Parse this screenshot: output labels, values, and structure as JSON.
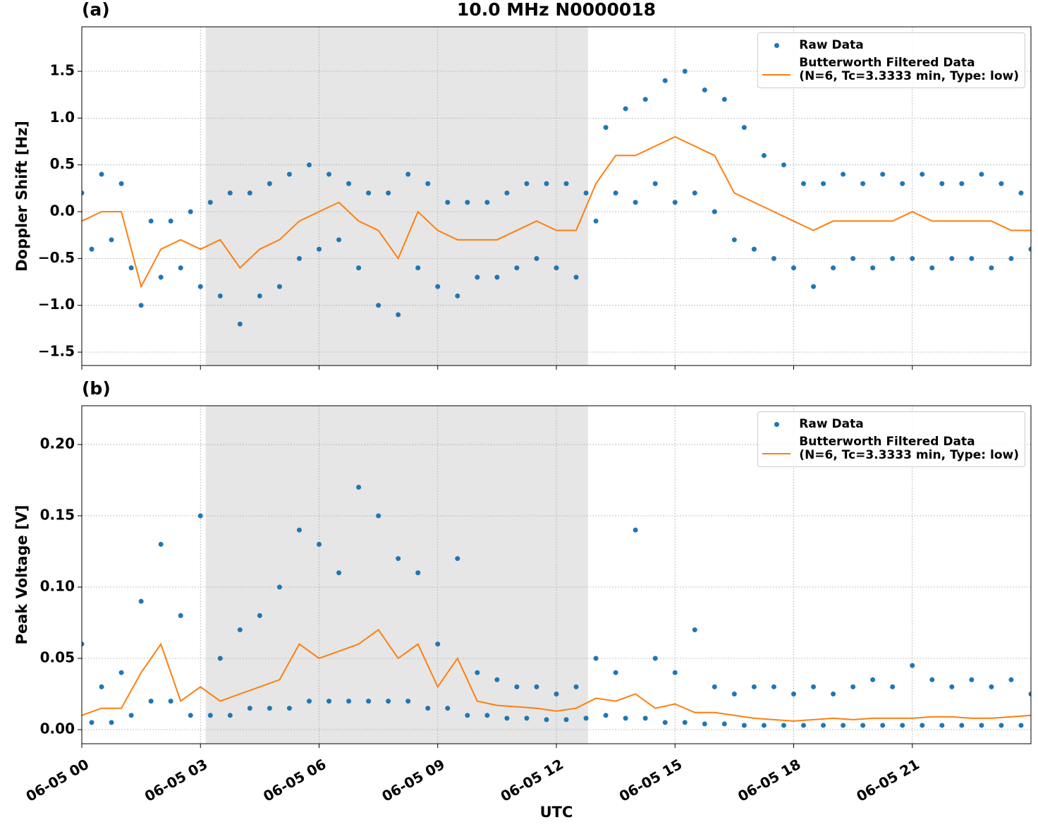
{
  "chart_data": [
    {
      "type": "scatter",
      "title": "10.0 MHz N0000018",
      "label": "(a)",
      "ylabel": "Doppler Shift [Hz]",
      "xlim": [
        0,
        24
      ],
      "ylim": [
        -1.643,
        1.975
      ],
      "yticks": [
        {
          "value": -1.5,
          "label": "−1.5"
        },
        {
          "value": -1.0,
          "label": "−1.0"
        },
        {
          "value": -0.5,
          "label": "−0.5"
        },
        {
          "value": 0,
          "label": "0.0"
        },
        0.5,
        {
          "value": 1.0,
          "label": "1.0"
        },
        1.5
      ],
      "grid": true,
      "shade": [
        3.13,
        12.8
      ],
      "legend": "upper right",
      "series": [
        {
          "name": "Raw Data",
          "color": "#1f77b4",
          "mode": "markers",
          "x": [
            0,
            0.25,
            0.5,
            0.75,
            1,
            1.25,
            1.5,
            1.75,
            2,
            2.25,
            2.5,
            2.75,
            3,
            3.25,
            3.5,
            3.75,
            4,
            4.25,
            4.5,
            4.75,
            5,
            5.25,
            5.5,
            5.75,
            6,
            6.25,
            6.5,
            6.75,
            7,
            7.25,
            7.5,
            7.75,
            8,
            8.25,
            8.5,
            8.75,
            9,
            9.25,
            9.5,
            9.75,
            10,
            10.25,
            10.5,
            10.75,
            11,
            11.25,
            11.5,
            11.75,
            12,
            12.25,
            12.5,
            12.75,
            13,
            13.25,
            13.5,
            13.75,
            14,
            14.25,
            14.5,
            14.75,
            15,
            15.25,
            15.5,
            15.75,
            16,
            16.25,
            16.5,
            16.75,
            17,
            17.25,
            17.5,
            17.75,
            18,
            18.25,
            18.5,
            18.75,
            19,
            19.25,
            19.5,
            19.75,
            20,
            20.25,
            20.5,
            20.75,
            21,
            21.25,
            21.5,
            21.75,
            22,
            22.25,
            22.5,
            22.75,
            23,
            23.25,
            23.5,
            23.75,
            24
          ],
          "values": [
            0.2,
            -0.4,
            0.4,
            -0.3,
            0.3,
            -0.6,
            -1.0,
            -0.1,
            -0.7,
            -0.1,
            -0.6,
            0.0,
            -0.8,
            0.1,
            -0.9,
            0.2,
            -1.2,
            0.2,
            -0.9,
            0.3,
            -0.8,
            0.4,
            -0.5,
            0.5,
            -0.4,
            0.4,
            -0.3,
            0.3,
            -0.6,
            0.2,
            -1.0,
            0.2,
            -1.1,
            0.4,
            -0.6,
            0.3,
            -0.8,
            0.1,
            -0.9,
            0.1,
            -0.7,
            0.1,
            -0.7,
            0.2,
            -0.6,
            0.3,
            -0.5,
            0.3,
            -0.6,
            0.3,
            -0.7,
            0.2,
            -0.1,
            0.9,
            0.2,
            1.1,
            0.1,
            1.2,
            0.3,
            1.4,
            0.1,
            1.5,
            0.2,
            1.3,
            0.0,
            1.2,
            -0.3,
            0.9,
            -0.4,
            0.6,
            -0.5,
            0.5,
            -0.6,
            0.3,
            -0.8,
            0.3,
            -0.6,
            0.4,
            -0.5,
            0.3,
            -0.6,
            0.4,
            -0.5,
            0.3,
            -0.5,
            0.4,
            -0.6,
            0.3,
            -0.5,
            0.3,
            -0.5,
            0.4,
            -0.6,
            0.3,
            -0.5,
            0.2,
            -0.4
          ]
        },
        {
          "name": "Butterworth Filtered Data\n(N=6, Tc=3.3333 min, Type: low)",
          "color": "#ff7f0e",
          "mode": "line",
          "x": [
            0,
            0.5,
            1,
            1.5,
            2,
            2.5,
            3,
            3.5,
            4,
            4.5,
            5,
            5.5,
            6,
            6.5,
            7,
            7.5,
            8,
            8.5,
            9,
            9.5,
            10,
            10.5,
            11,
            11.5,
            12,
            12.5,
            13,
            13.5,
            14,
            14.5,
            15,
            15.5,
            16,
            16.5,
            17,
            17.5,
            18,
            18.5,
            19,
            19.5,
            20,
            20.5,
            21,
            21.5,
            22,
            22.5,
            23,
            23.5,
            24
          ],
          "values": [
            -0.1,
            0.0,
            0.0,
            -0.8,
            -0.4,
            -0.3,
            -0.4,
            -0.3,
            -0.6,
            -0.4,
            -0.3,
            -0.1,
            0.0,
            0.1,
            -0.1,
            -0.2,
            -0.5,
            0.0,
            -0.2,
            -0.3,
            -0.3,
            -0.3,
            -0.2,
            -0.1,
            -0.2,
            -0.2,
            0.3,
            0.6,
            0.6,
            0.7,
            0.8,
            0.7,
            0.6,
            0.2,
            0.1,
            0.0,
            -0.1,
            -0.2,
            -0.1,
            -0.1,
            -0.1,
            -0.1,
            0.0,
            -0.1,
            -0.1,
            -0.1,
            -0.1,
            -0.2,
            -0.2
          ]
        }
      ]
    },
    {
      "type": "scatter",
      "label": "(b)",
      "ylabel": "Peak Voltage [V]",
      "xlabel": "UTC",
      "xlim": [
        0,
        24
      ],
      "ylim": [
        -0.0099,
        0.2272
      ],
      "xticks": [
        {
          "value": 0,
          "label": "06-05 00"
        },
        {
          "value": 3,
          "label": "06-05 03"
        },
        {
          "value": 6,
          "label": "06-05 06"
        },
        {
          "value": 9,
          "label": "06-05 09"
        },
        {
          "value": 12,
          "label": "06-05 12"
        },
        {
          "value": 15,
          "label": "06-05 15"
        },
        {
          "value": 18,
          "label": "06-05 18"
        },
        {
          "value": 21,
          "label": "06-05 21"
        }
      ],
      "yticks": [
        {
          "value": 0,
          "label": "0.00"
        },
        0.05,
        {
          "value": 0.1,
          "label": "0.10"
        },
        0.15,
        {
          "value": 0.2,
          "label": "0.20"
        }
      ],
      "grid": true,
      "shade": [
        3.13,
        12.8
      ],
      "legend": "upper right",
      "series": [
        {
          "name": "Raw Data",
          "color": "#1f77b4",
          "mode": "markers",
          "x": [
            0,
            0.25,
            0.5,
            0.75,
            1,
            1.25,
            1.5,
            1.75,
            2,
            2.25,
            2.5,
            2.75,
            3,
            3.25,
            3.5,
            3.75,
            4,
            4.25,
            4.5,
            4.75,
            5,
            5.25,
            5.5,
            5.75,
            6,
            6.25,
            6.5,
            6.75,
            7,
            7.25,
            7.5,
            7.75,
            8,
            8.25,
            8.5,
            8.75,
            9,
            9.25,
            9.5,
            9.75,
            10,
            10.25,
            10.5,
            10.75,
            11,
            11.25,
            11.5,
            11.75,
            12,
            12.25,
            12.5,
            12.75,
            13,
            13.25,
            13.5,
            13.75,
            14,
            14.25,
            14.5,
            14.75,
            15,
            15.25,
            15.5,
            15.75,
            16,
            16.25,
            16.5,
            16.75,
            17,
            17.25,
            17.5,
            17.75,
            18,
            18.25,
            18.5,
            18.75,
            19,
            19.25,
            19.5,
            19.75,
            20,
            20.25,
            20.5,
            20.75,
            21,
            21.25,
            21.5,
            21.75,
            22,
            22.25,
            22.5,
            22.75,
            23,
            23.25,
            23.5,
            23.75,
            24
          ],
          "values": [
            0.06,
            0.005,
            0.03,
            0.005,
            0.04,
            0.01,
            0.09,
            0.02,
            0.13,
            0.02,
            0.08,
            0.01,
            0.15,
            0.01,
            0.05,
            0.01,
            0.07,
            0.015,
            0.08,
            0.015,
            0.1,
            0.015,
            0.14,
            0.02,
            0.13,
            0.02,
            0.11,
            0.02,
            0.17,
            0.02,
            0.15,
            0.02,
            0.12,
            0.02,
            0.11,
            0.015,
            0.06,
            0.015,
            0.12,
            0.01,
            0.04,
            0.01,
            0.035,
            0.008,
            0.03,
            0.008,
            0.03,
            0.007,
            0.025,
            0.007,
            0.03,
            0.008,
            0.05,
            0.01,
            0.04,
            0.008,
            0.14,
            0.008,
            0.05,
            0.005,
            0.04,
            0.005,
            0.07,
            0.004,
            0.03,
            0.004,
            0.025,
            0.003,
            0.03,
            0.003,
            0.03,
            0.003,
            0.025,
            0.003,
            0.03,
            0.003,
            0.025,
            0.003,
            0.03,
            0.003,
            0.035,
            0.003,
            0.03,
            0.003,
            0.045,
            0.003,
            0.035,
            0.003,
            0.03,
            0.003,
            0.035,
            0.003,
            0.03,
            0.003,
            0.035,
            0.003,
            0.025
          ]
        },
        {
          "name": "Butterworth Filtered Data\n(N=6, Tc=3.3333 min, Type: low)",
          "color": "#ff7f0e",
          "mode": "line",
          "x": [
            0,
            0.5,
            1,
            1.5,
            2,
            2.5,
            3,
            3.5,
            4,
            4.5,
            5,
            5.5,
            6,
            6.5,
            7,
            7.5,
            8,
            8.5,
            9,
            9.5,
            10,
            10.5,
            11,
            11.5,
            12,
            12.5,
            13,
            13.5,
            14,
            14.5,
            15,
            15.5,
            16,
            16.5,
            17,
            17.5,
            18,
            18.5,
            19,
            19.5,
            20,
            20.5,
            21,
            21.5,
            22,
            22.5,
            23,
            23.5,
            24
          ],
          "values": [
            0.01,
            0.015,
            0.015,
            0.04,
            0.06,
            0.02,
            0.03,
            0.02,
            0.025,
            0.03,
            0.035,
            0.06,
            0.05,
            0.055,
            0.06,
            0.07,
            0.05,
            0.06,
            0.03,
            0.05,
            0.02,
            0.017,
            0.016,
            0.015,
            0.013,
            0.015,
            0.022,
            0.02,
            0.025,
            0.015,
            0.018,
            0.012,
            0.012,
            0.01,
            0.008,
            0.007,
            0.006,
            0.007,
            0.008,
            0.007,
            0.008,
            0.008,
            0.008,
            0.009,
            0.009,
            0.008,
            0.008,
            0.009,
            0.01
          ]
        }
      ]
    }
  ]
}
